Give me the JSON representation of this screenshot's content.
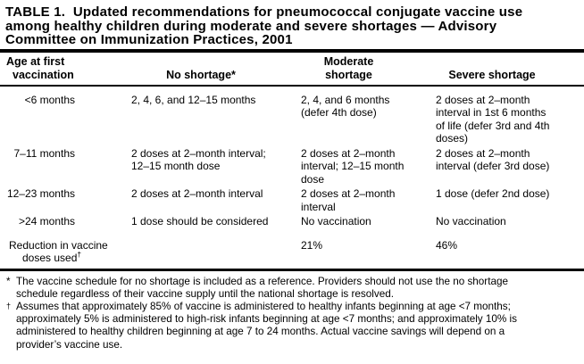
{
  "page": {
    "title": "TABLE 1.  Updated recommendations for pneumococcal conjugate vaccine use\namong healthy children during moderate and severe shortages — Advisory\nCommittee on Immunization Practices, 2001"
  },
  "table": {
    "header": {
      "age_line1": "Age at first",
      "age_line2": "vaccination",
      "no_shortage": "No shortage*",
      "moderate": "Moderate shortage",
      "severe": "Severe shortage"
    },
    "rows": [
      {
        "age": "<6 months",
        "no_shortage": "2, 4, 6, and 12–15 months",
        "moderate": "2, 4, and 6 months\n(defer 4th dose)",
        "severe": "2 doses at 2–month\ninterval in 1st 6 months\nof life (defer 3rd and 4th\ndoses)"
      },
      {
        "age": "7–11 months",
        "no_shortage": "2 doses at 2–month interval;\n12–15 month dose",
        "moderate": "2 doses at 2–month\ninterval; 12–15 month\ndose",
        "severe": "2 doses at 2–month\ninterval (defer 3rd dose)"
      },
      {
        "age": "12–23 months",
        "no_shortage": "2 doses at 2–month interval",
        "moderate": "2 doses at 2–month\ninterval",
        "severe": "1 dose (defer 2nd dose)"
      },
      {
        "age": ">24 months",
        "no_shortage": "1 dose should be considered",
        "moderate": "No vaccination",
        "severe": "No vaccination"
      }
    ],
    "summary": {
      "label_line1": "Reduction in vaccine",
      "label_line2": "doses used",
      "label_sup": "†",
      "moderate": "21%",
      "severe": "46%"
    }
  },
  "footnotes": [
    {
      "marker": "*",
      "text": "The vaccine schedule for no shortage is included as a reference. Providers should not use the no shortage\nschedule regardless of their vaccine supply until the national shortage is resolved."
    },
    {
      "marker": "†",
      "text": "Assumes that approximately 85% of vaccine is administered to healthy infants beginning at age <7 months;\napproximately 5% is administered to high-risk infants beginning at age <7 months; and approximately 10% is\nadministered to healthy children beginning at age 7 to 24 months.  Actual vaccine savings will depend on a\nprovider’s vaccine use."
    }
  ]
}
